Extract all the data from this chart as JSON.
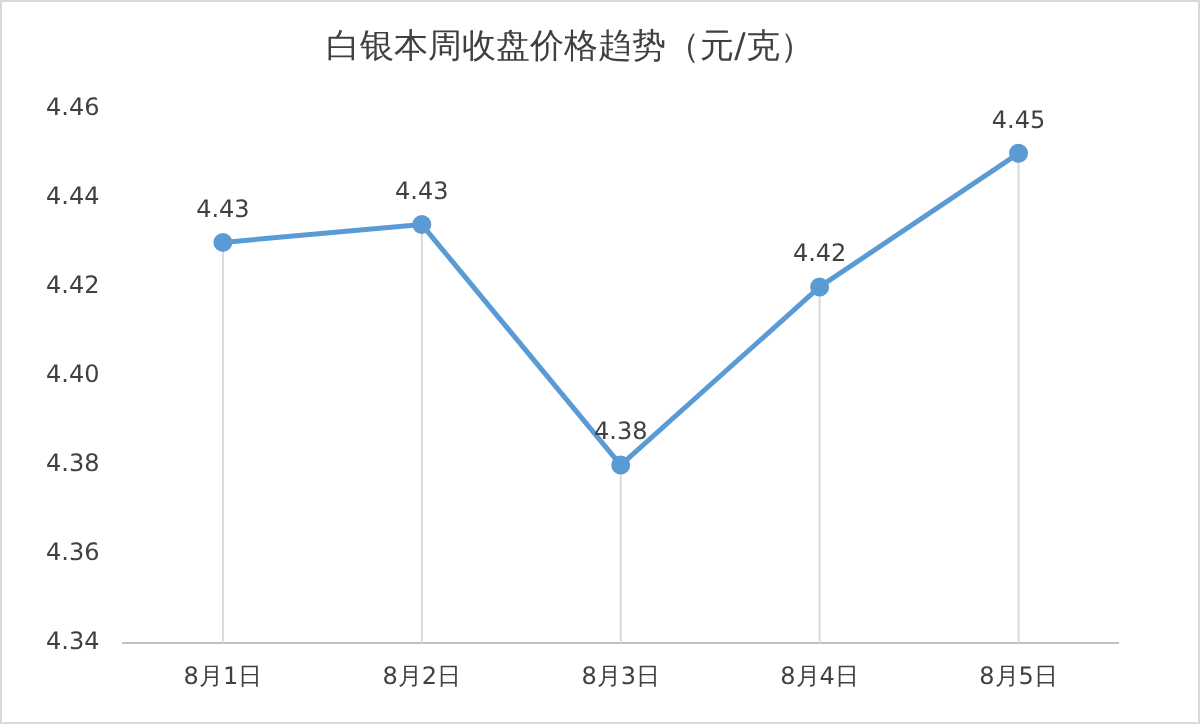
{
  "chart_data": {
    "type": "line",
    "title": "白银本周收盘价格趋势（元/克）",
    "categories": [
      "8月1日",
      "8月2日",
      "8月3日",
      "8月4日",
      "8月5日"
    ],
    "series": [
      {
        "color": "#5b9bd5",
        "values": [
          4.43,
          4.434,
          4.38,
          4.42,
          4.45
        ],
        "value_labels": [
          "4.43",
          "4.43",
          "4.38",
          "4.42",
          "4.45"
        ]
      }
    ],
    "ylim": [
      4.34,
      4.46
    ],
    "yticks": [
      {
        "value": 4.34,
        "label": "4.34"
      },
      {
        "value": 4.36,
        "label": "4.36"
      },
      {
        "value": 4.38,
        "label": "4.38"
      },
      {
        "value": 4.4,
        "label": "4.40"
      },
      {
        "value": 4.42,
        "label": "4.42"
      },
      {
        "value": 4.44,
        "label": "4.44"
      },
      {
        "value": 4.46,
        "label": "4.46"
      }
    ],
    "grid": "x",
    "legend": false,
    "marker": "circle",
    "line_style": "solid"
  }
}
